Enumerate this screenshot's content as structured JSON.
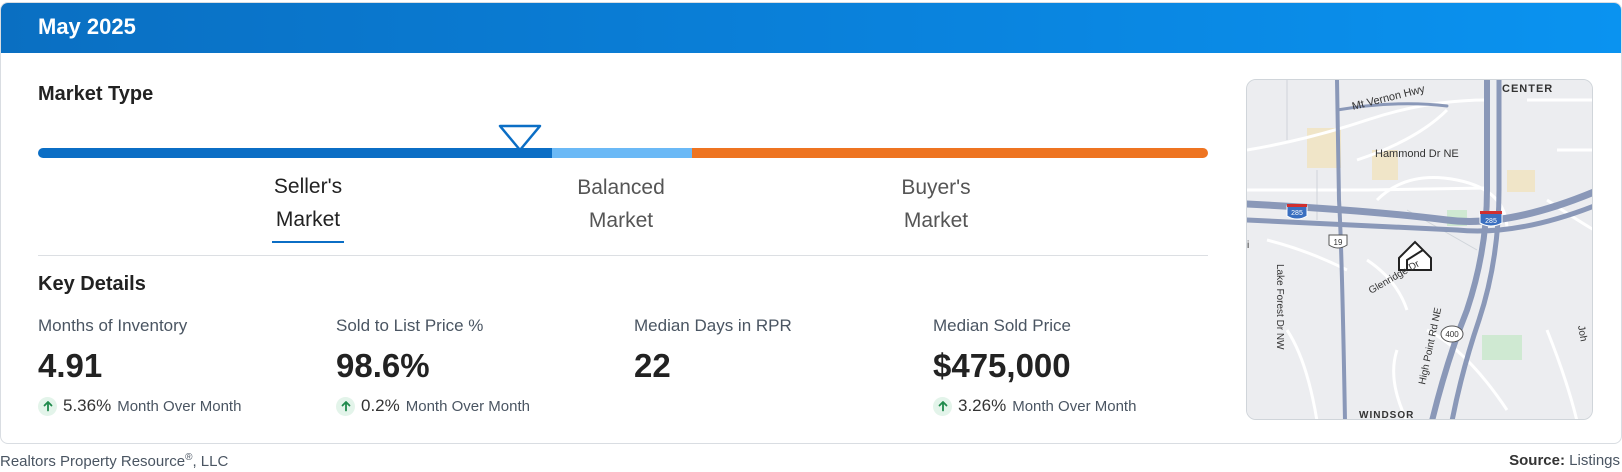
{
  "header": {
    "title": "May 2025"
  },
  "market_type": {
    "title": "Market Type",
    "labels": {
      "seller": {
        "line1": "Seller's",
        "line2": "Market"
      },
      "balanced": {
        "line1": "Balanced",
        "line2": "Market"
      },
      "buyer": {
        "line1": "Buyer's",
        "line2": "Market"
      }
    },
    "selected": "Seller's Market",
    "colors": {
      "seller": "#0b6ec5",
      "balanced": "#6bb9f6",
      "buyer": "#ee7421"
    }
  },
  "key_details": {
    "title": "Key Details",
    "metrics": [
      {
        "label": "Months of Inventory",
        "value": "4.91",
        "change": "5.36%",
        "period": "Month Over Month"
      },
      {
        "label": "Sold to List Price %",
        "value": "98.6%",
        "change": "0.2%",
        "period": "Month Over Month"
      },
      {
        "label": "Median Days in RPR",
        "value": "22"
      },
      {
        "label": "Median Sold Price",
        "value": "$475,000",
        "change": "3.26%",
        "period": "Month Over Month"
      }
    ]
  },
  "map": {
    "labels": {
      "center": "CENTER",
      "mt_vernon": "Mt Vernon Hwy",
      "hammond": "Hammond Dr NE",
      "glenridge": "Glenridge Dr",
      "lake_forest": "Lake Forest Dr NW",
      "high_point": "High Point Rd NE",
      "windsor": "WINDSOR",
      "i285": "285",
      "us19": "19",
      "ga400": "400",
      "edge_left": "i",
      "edge_right": "Joh"
    }
  },
  "footer": {
    "company": "Realtors Property Resource",
    "registered": "®",
    "company_suffix": ", LLC",
    "source_label": "Source:",
    "source_value": "Listings"
  }
}
